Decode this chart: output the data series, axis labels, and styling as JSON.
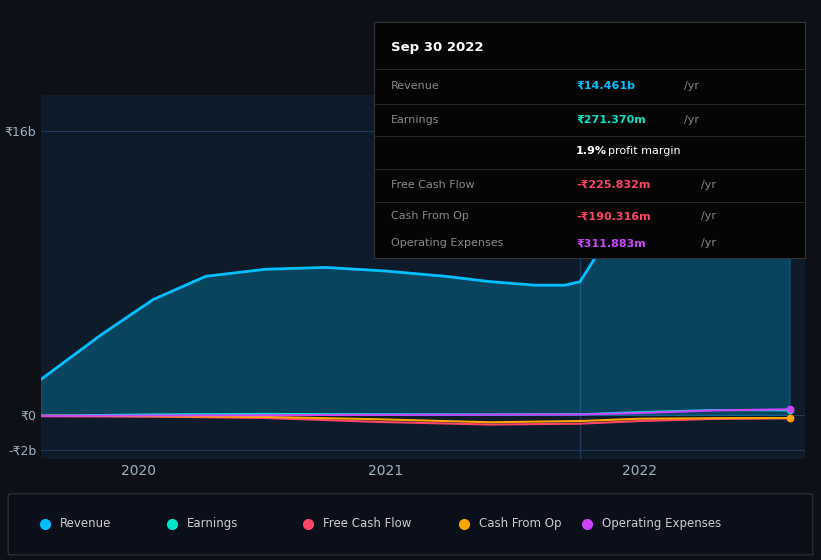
{
  "bg_color": "#0d1117",
  "plot_bg_color": "#0d1b2a",
  "grid_color": "#1e3a5f",
  "ylabel_16b": "₹16b",
  "ylabel_0": "₹0",
  "ylabel_neg2b": "-₹2b",
  "x_labels": [
    "2020",
    "2021",
    "2022"
  ],
  "series": {
    "Revenue": {
      "color": "#00bfff",
      "linewidth": 2.0
    },
    "Earnings": {
      "color": "#00e5cc",
      "linewidth": 1.5
    },
    "Free Cash Flow": {
      "color": "#ff4466",
      "linewidth": 1.5
    },
    "Cash From Op": {
      "color": "#ffa500",
      "linewidth": 1.5
    },
    "Operating Expenses": {
      "color": "#cc44ff",
      "linewidth": 1.5
    }
  },
  "tooltip": {
    "date": "Sep 30 2022",
    "Revenue": {
      "value": "₹14.461b",
      "unit": "/yr",
      "color": "#00bfff"
    },
    "Earnings": {
      "value": "₹271.370m",
      "unit": "/yr",
      "color": "#00e5cc"
    },
    "profit_margin": {
      "value": "1.9%",
      "text": "profit margin"
    },
    "Free Cash Flow": {
      "value": "-₹225.832m",
      "unit": "/yr",
      "color": "#ff4466"
    },
    "Cash From Op": {
      "value": "-₹190.316m",
      "unit": "/yr",
      "color": "#ff4466"
    },
    "Operating Expenses": {
      "value": "₹311.883m",
      "unit": "/yr",
      "color": "#cc44ff"
    }
  },
  "legend": [
    {
      "label": "Revenue",
      "color": "#00bfff"
    },
    {
      "label": "Earnings",
      "color": "#00e5cc"
    },
    {
      "label": "Free Cash Flow",
      "color": "#ff4466"
    },
    {
      "label": "Cash From Op",
      "color": "#ffa500"
    },
    {
      "label": "Operating Expenses",
      "color": "#cc44ff"
    }
  ],
  "vline_x": 0.72,
  "revenue_x": [
    0.0,
    0.08,
    0.15,
    0.22,
    0.3,
    0.38,
    0.46,
    0.54,
    0.6,
    0.66,
    0.7,
    0.72,
    0.75,
    0.8,
    0.88,
    0.95,
    1.0
  ],
  "revenue_y": [
    2000000000,
    4500000000,
    6500000000,
    7800000000,
    8200000000,
    8300000000,
    8100000000,
    7800000000,
    7500000000,
    7300000000,
    7300000000,
    7500000000,
    9500000000,
    12500000000,
    14800000000,
    15300000000,
    15100000000
  ],
  "earnings_x": [
    0.0,
    0.15,
    0.3,
    0.45,
    0.6,
    0.72,
    0.8,
    0.9,
    1.0
  ],
  "earnings_y": [
    -50000000,
    20000000,
    50000000,
    30000000,
    20000000,
    30000000,
    150000000,
    270000000,
    250000000
  ],
  "fcf_x": [
    0.0,
    0.15,
    0.3,
    0.45,
    0.6,
    0.72,
    0.8,
    0.9,
    1.0
  ],
  "fcf_y": [
    -80000000,
    -100000000,
    -180000000,
    -400000000,
    -550000000,
    -500000000,
    -350000000,
    -230000000,
    -200000000
  ],
  "cashop_x": [
    0.0,
    0.15,
    0.3,
    0.45,
    0.6,
    0.72,
    0.8,
    0.9,
    1.0
  ],
  "cashop_y": [
    -50000000,
    -80000000,
    -120000000,
    -250000000,
    -420000000,
    -350000000,
    -220000000,
    -190000000,
    -180000000
  ],
  "opex_x": [
    0.0,
    0.15,
    0.3,
    0.45,
    0.6,
    0.72,
    0.8,
    0.9,
    1.0
  ],
  "opex_y": [
    -60000000,
    -40000000,
    -20000000,
    0,
    10000000,
    20000000,
    100000000,
    250000000,
    310000000
  ],
  "x_tick_positions": [
    0.13,
    0.46,
    0.8
  ],
  "ylim_low": -2500000000,
  "ylim_high": 18000000000,
  "ytick_vals": [
    16000000000,
    0,
    -2000000000
  ]
}
